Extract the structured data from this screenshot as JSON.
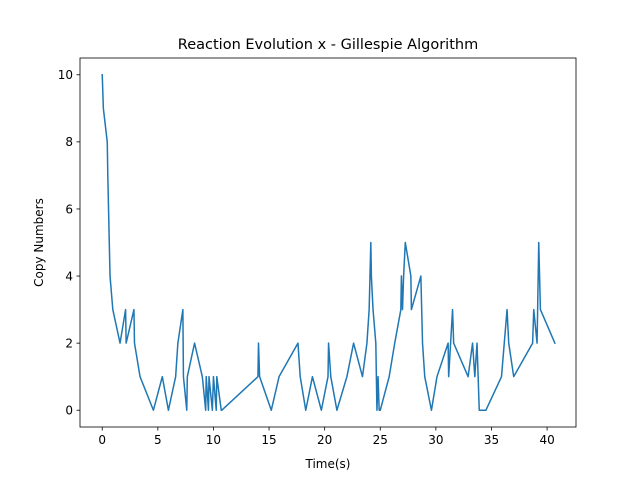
{
  "chart_data": {
    "type": "line",
    "title": "Reaction Evolution x - Gillespie Algorithm",
    "xlabel": "Time(s)",
    "ylabel": "Copy Numbers",
    "xlim": [
      -2.0,
      42.6
    ],
    "ylim": [
      -0.5,
      10.5
    ],
    "xticks": [
      0,
      5,
      10,
      15,
      20,
      25,
      30,
      35,
      40
    ],
    "yticks": [
      0,
      2,
      4,
      6,
      8,
      10
    ],
    "grid": false,
    "series": [
      {
        "color": "#1f77b4",
        "x": [
          0.0,
          0.1,
          0.45,
          0.5,
          0.7,
          0.95,
          1.6,
          2.1,
          2.15,
          2.85,
          2.9,
          3.4,
          4.6,
          5.4,
          5.95,
          6.6,
          6.8,
          7.25,
          7.3,
          7.6,
          7.65,
          8.3,
          9.0,
          9.3,
          9.35,
          9.55,
          9.6,
          9.9,
          10.0,
          10.25,
          10.3,
          10.7,
          10.75,
          14.0,
          14.05,
          14.15,
          15.2,
          15.9,
          17.6,
          17.8,
          18.3,
          18.9,
          19.7,
          20.3,
          20.35,
          20.55,
          21.1,
          22.0,
          22.6,
          23.4,
          23.8,
          24.0,
          24.15,
          24.2,
          24.35,
          24.6,
          24.7,
          24.8,
          24.9,
          25.0,
          25.8,
          26.3,
          26.85,
          26.9,
          27.0,
          27.1,
          27.25,
          27.75,
          27.8,
          28.65,
          28.8,
          29.0,
          29.6,
          30.1,
          31.1,
          31.15,
          31.5,
          31.6,
          32.9,
          33.3,
          33.5,
          33.7,
          33.9,
          34.5,
          35.9,
          36.4,
          36.55,
          37.0,
          38.7,
          38.8,
          39.1,
          39.25,
          39.4,
          40.7
        ],
        "y": [
          10,
          9,
          8,
          7,
          4,
          3,
          2,
          3,
          2,
          3,
          2,
          1,
          0,
          1,
          0,
          1,
          2,
          3,
          1,
          0,
          1,
          2,
          1,
          0,
          1,
          0,
          1,
          0,
          1,
          0,
          1,
          0,
          0,
          1,
          2,
          1,
          0,
          1,
          2,
          1,
          0,
          1,
          0,
          1,
          2,
          1,
          0,
          1,
          2,
          1,
          2,
          3,
          5,
          4,
          3,
          2,
          0,
          1,
          0,
          0,
          1,
          2,
          3,
          4,
          3,
          4,
          5,
          4,
          3,
          4,
          2,
          1,
          0,
          1,
          2,
          1,
          3,
          2,
          1,
          2,
          1,
          2,
          0,
          0,
          1,
          3,
          2,
          1,
          2,
          3,
          2,
          5,
          3,
          2
        ]
      }
    ]
  }
}
